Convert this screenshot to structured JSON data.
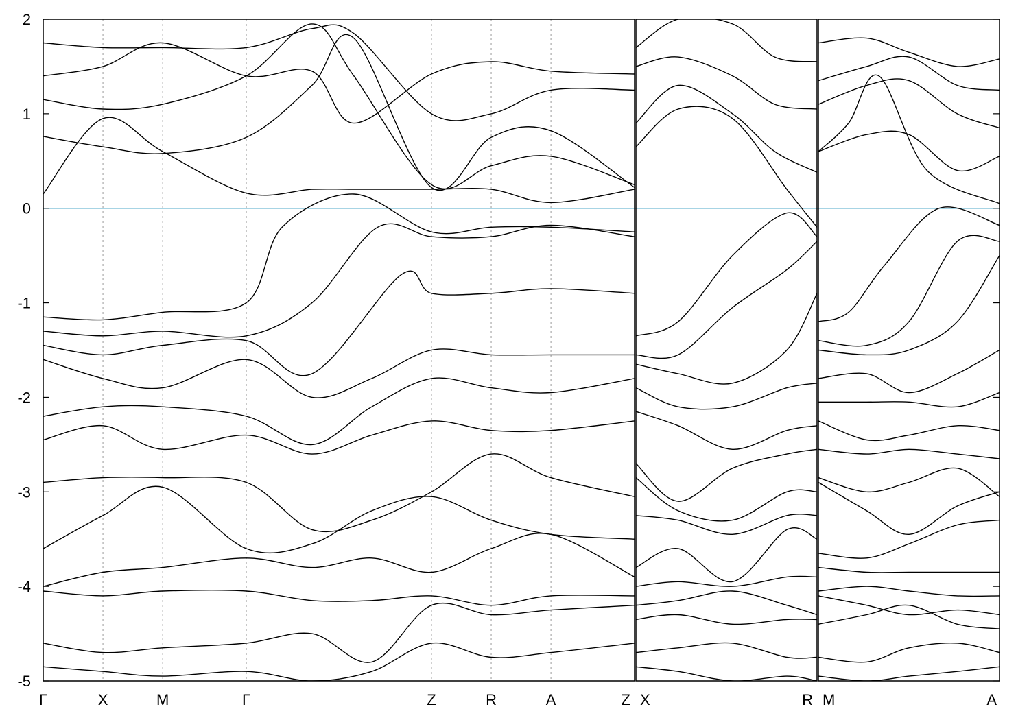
{
  "chart_data": {
    "type": "line",
    "title": "",
    "xlabel": "",
    "ylabel": "",
    "ylim": [
      -5,
      2
    ],
    "yticks": [
      2,
      1,
      0,
      -1,
      -2,
      -3,
      -4,
      -5
    ],
    "ytick_labels": [
      "2",
      "1",
      "0",
      "-1",
      "-2",
      "-3",
      "-4",
      "-5"
    ],
    "fermi_level": 0,
    "fermi_color": "#4fa8c8",
    "band_color": "#000000",
    "grid": "dashed vertical lines at high-symmetry points",
    "panels": [
      {
        "xlim": [
          0,
          9.0
        ],
        "kpoints": [
          {
            "x": 0.0,
            "label": "Γ"
          },
          {
            "x": 1.0,
            "label": "X"
          },
          {
            "x": 2.0,
            "label": "M"
          },
          {
            "x": 3.4,
            "label": "Γ"
          },
          {
            "x": 6.5,
            "label": "Z"
          },
          {
            "x": 7.5,
            "label": "R"
          },
          {
            "x": 8.5,
            "label": "A"
          },
          {
            "x": 9.9,
            "label": "Z"
          }
        ]
      },
      {
        "kpoints": [
          {
            "x": 0.0,
            "label": "X"
          },
          {
            "x": 3.0,
            "label": "R"
          }
        ]
      },
      {
        "kpoints": [
          {
            "x": 0.0,
            "label": "M"
          },
          {
            "x": 3.0,
            "label": "A"
          }
        ]
      }
    ],
    "series": [
      {
        "panel": 0,
        "x": [
          0,
          1,
          2,
          3.4,
          4.5,
          5.2,
          6.5,
          7.5,
          8.5,
          9.9
        ],
        "values": [
          0.15,
          0.95,
          0.6,
          0.16,
          0.2,
          0.2,
          0.2,
          0.2,
          0.06,
          0.2
        ]
      },
      {
        "panel": 0,
        "x": [
          0,
          1,
          2,
          3.4,
          4.5,
          5.2,
          6.5,
          7.5,
          8.5,
          9.9
        ],
        "values": [
          0.76,
          0.65,
          0.58,
          0.75,
          1.3,
          1.8,
          0.22,
          0.75,
          0.82,
          0.22
        ]
      },
      {
        "panel": 0,
        "x": [
          0,
          1,
          2,
          3.4,
          4.5,
          5.2,
          6.5,
          7.5,
          8.5,
          9.9
        ],
        "values": [
          1.15,
          1.05,
          1.1,
          1.4,
          1.95,
          1.4,
          0.25,
          0.45,
          0.55,
          0.25
        ]
      },
      {
        "panel": 0,
        "x": [
          0,
          1,
          2,
          3.4,
          4.5,
          5.2,
          6.5,
          7.5,
          8.5,
          9.9
        ],
        "values": [
          1.4,
          1.5,
          1.75,
          1.4,
          1.45,
          0.9,
          1.42,
          1.55,
          1.45,
          1.42
        ]
      },
      {
        "panel": 0,
        "x": [
          0,
          1,
          2,
          3.4,
          4.5,
          5.2,
          6.5,
          7.5,
          8.5,
          9.9
        ],
        "values": [
          1.75,
          1.7,
          1.7,
          1.7,
          1.9,
          1.85,
          1.0,
          1.0,
          1.25,
          1.25
        ]
      },
      {
        "panel": 0,
        "x": [
          0,
          1,
          2,
          3.4,
          4.0,
          5.2,
          6.5,
          7.5,
          8.5,
          9.9
        ],
        "values": [
          -1.15,
          -1.18,
          -1.1,
          -1.0,
          -0.2,
          0.15,
          -0.25,
          -0.2,
          -0.2,
          -0.25
        ]
      },
      {
        "panel": 0,
        "x": [
          0,
          1,
          2,
          3.4,
          4.5,
          5.6,
          6.5,
          7.5,
          8.5,
          9.9
        ],
        "values": [
          -1.3,
          -1.35,
          -1.3,
          -1.35,
          -1.0,
          -0.2,
          -0.3,
          -0.3,
          -0.18,
          -0.3
        ]
      },
      {
        "panel": 0,
        "x": [
          0,
          1,
          2,
          3.4,
          4.5,
          6.0,
          6.5,
          7.5,
          8.5,
          9.9
        ],
        "values": [
          -1.45,
          -1.55,
          -1.45,
          -1.4,
          -1.75,
          -0.7,
          -0.9,
          -0.9,
          -0.85,
          -0.9
        ]
      },
      {
        "panel": 0,
        "x": [
          0,
          1,
          2,
          3.4,
          4.5,
          5.5,
          6.5,
          7.5,
          8.5,
          9.9
        ],
        "values": [
          -1.6,
          -1.8,
          -1.9,
          -1.6,
          -2.0,
          -1.8,
          -1.5,
          -1.55,
          -1.55,
          -1.55
        ]
      },
      {
        "panel": 0,
        "x": [
          0,
          1,
          2,
          3.4,
          4.5,
          5.5,
          6.5,
          7.5,
          8.5,
          9.9
        ],
        "values": [
          -2.2,
          -2.1,
          -2.1,
          -2.2,
          -2.5,
          -2.1,
          -1.8,
          -1.9,
          -1.95,
          -1.8
        ]
      },
      {
        "panel": 0,
        "x": [
          0,
          1,
          2,
          3.4,
          4.5,
          5.5,
          6.5,
          7.5,
          8.5,
          9.9
        ],
        "values": [
          -2.45,
          -2.3,
          -2.55,
          -2.4,
          -2.6,
          -2.4,
          -2.25,
          -2.35,
          -2.35,
          -2.25
        ]
      },
      {
        "panel": 0,
        "x": [
          0,
          1,
          2,
          3.4,
          4.5,
          5.5,
          6.5,
          7.5,
          8.5,
          9.9
        ],
        "values": [
          -2.9,
          -2.85,
          -2.85,
          -2.9,
          -3.4,
          -3.3,
          -3.0,
          -2.6,
          -2.85,
          -3.05
        ]
      },
      {
        "panel": 0,
        "x": [
          0,
          1,
          2,
          3.4,
          4.5,
          5.5,
          6.5,
          7.5,
          8.5,
          9.9
        ],
        "values": [
          -3.6,
          -3.25,
          -2.95,
          -3.6,
          -3.55,
          -3.2,
          -3.05,
          -3.3,
          -3.45,
          -3.5
        ]
      },
      {
        "panel": 0,
        "x": [
          0,
          1,
          2,
          3.4,
          4.5,
          5.5,
          6.5,
          7.5,
          8.5,
          9.9
        ],
        "values": [
          -4.0,
          -3.85,
          -3.8,
          -3.7,
          -3.8,
          -3.7,
          -3.85,
          -3.6,
          -3.45,
          -3.9
        ]
      },
      {
        "panel": 0,
        "x": [
          0,
          1,
          2,
          3.4,
          4.5,
          5.5,
          6.5,
          7.5,
          8.5,
          9.9
        ],
        "values": [
          -4.05,
          -4.1,
          -4.05,
          -4.05,
          -4.15,
          -4.15,
          -4.1,
          -4.2,
          -4.1,
          -4.1
        ]
      },
      {
        "panel": 0,
        "x": [
          0,
          1,
          2,
          3.4,
          4.5,
          5.5,
          6.5,
          7.5,
          8.5,
          9.9
        ],
        "values": [
          -4.6,
          -4.7,
          -4.65,
          -4.6,
          -4.5,
          -4.8,
          -4.2,
          -4.3,
          -4.25,
          -4.2
        ]
      },
      {
        "panel": 0,
        "x": [
          0,
          1,
          2,
          3.4,
          4.5,
          5.5,
          6.5,
          7.5,
          8.5,
          9.9
        ],
        "values": [
          -4.85,
          -4.9,
          -4.95,
          -4.9,
          -5.0,
          -4.9,
          -4.6,
          -4.75,
          -4.7,
          -4.6
        ]
      },
      {
        "panel": 1,
        "x": [
          0,
          0.7,
          1.6,
          2.3,
          3.0
        ],
        "values": [
          1.7,
          2.0,
          1.95,
          1.6,
          1.55
        ]
      },
      {
        "panel": 1,
        "x": [
          0,
          0.7,
          1.6,
          2.3,
          3.0
        ],
        "values": [
          1.5,
          1.6,
          1.4,
          1.1,
          1.05
        ]
      },
      {
        "panel": 1,
        "x": [
          0,
          0.7,
          1.6,
          2.3,
          3.0
        ],
        "values": [
          0.9,
          1.3,
          1.0,
          0.6,
          0.38
        ]
      },
      {
        "panel": 1,
        "x": [
          0,
          0.7,
          1.6,
          2.5,
          3.0
        ],
        "values": [
          0.65,
          1.05,
          0.95,
          0.2,
          -0.2
        ]
      },
      {
        "panel": 1,
        "x": [
          0,
          0.7,
          1.6,
          2.5,
          3.0
        ],
        "values": [
          -1.35,
          -1.2,
          -0.5,
          -0.05,
          -0.3
        ]
      },
      {
        "panel": 1,
        "x": [
          0,
          0.7,
          1.6,
          2.5,
          3.0
        ],
        "values": [
          -1.55,
          -1.55,
          -1.05,
          -0.65,
          -0.35
        ]
      },
      {
        "panel": 1,
        "x": [
          0,
          0.7,
          1.6,
          2.5,
          3.0
        ],
        "values": [
          -1.65,
          -1.75,
          -1.85,
          -1.5,
          -0.9
        ]
      },
      {
        "panel": 1,
        "x": [
          0,
          0.7,
          1.6,
          2.5,
          3.0
        ],
        "values": [
          -1.9,
          -2.1,
          -2.1,
          -1.9,
          -1.85
        ]
      },
      {
        "panel": 1,
        "x": [
          0,
          0.7,
          1.6,
          2.5,
          3.0
        ],
        "values": [
          -2.15,
          -2.3,
          -2.55,
          -2.35,
          -2.3
        ]
      },
      {
        "panel": 1,
        "x": [
          0,
          0.7,
          1.6,
          2.5,
          3.0
        ],
        "values": [
          -2.7,
          -3.1,
          -2.75,
          -2.6,
          -2.55
        ]
      },
      {
        "panel": 1,
        "x": [
          0,
          0.7,
          1.6,
          2.5,
          3.0
        ],
        "values": [
          -2.85,
          -3.2,
          -3.3,
          -3.0,
          -3.0
        ]
      },
      {
        "panel": 1,
        "x": [
          0,
          0.7,
          1.6,
          2.5,
          3.0
        ],
        "values": [
          -3.25,
          -3.3,
          -3.45,
          -3.25,
          -3.25
        ]
      },
      {
        "panel": 1,
        "x": [
          0,
          0.7,
          1.6,
          2.5,
          3.0
        ],
        "values": [
          -3.8,
          -3.6,
          -3.95,
          -3.4,
          -3.5
        ]
      },
      {
        "panel": 1,
        "x": [
          0,
          0.7,
          1.6,
          2.5,
          3.0
        ],
        "values": [
          -4.0,
          -3.95,
          -4.0,
          -3.9,
          -3.9
        ]
      },
      {
        "panel": 1,
        "x": [
          0,
          0.7,
          1.6,
          2.5,
          3.0
        ],
        "values": [
          -4.2,
          -4.15,
          -4.05,
          -4.2,
          -4.3
        ]
      },
      {
        "panel": 1,
        "x": [
          0,
          0.7,
          1.6,
          2.5,
          3.0
        ],
        "values": [
          -4.35,
          -4.3,
          -4.4,
          -4.35,
          -4.35
        ]
      },
      {
        "panel": 1,
        "x": [
          0,
          0.7,
          1.6,
          2.5,
          3.0
        ],
        "values": [
          -4.7,
          -4.65,
          -4.6,
          -4.75,
          -4.75
        ]
      },
      {
        "panel": 1,
        "x": [
          0,
          0.7,
          1.6,
          2.5,
          3.0
        ],
        "values": [
          -4.85,
          -4.9,
          -5.0,
          -4.95,
          -5.0
        ]
      },
      {
        "panel": 2,
        "x": [
          0,
          0.8,
          1.5,
          2.3,
          3.0
        ],
        "values": [
          1.75,
          1.8,
          1.65,
          1.5,
          1.58
        ]
      },
      {
        "panel": 2,
        "x": [
          0,
          0.8,
          1.5,
          2.3,
          3.0
        ],
        "values": [
          1.35,
          1.5,
          1.6,
          1.3,
          1.25
        ]
      },
      {
        "panel": 2,
        "x": [
          0,
          0.8,
          1.5,
          2.3,
          3.0
        ],
        "values": [
          1.1,
          1.3,
          1.35,
          1.0,
          0.85
        ]
      },
      {
        "panel": 2,
        "x": [
          0,
          0.8,
          1.5,
          2.3,
          3.0
        ],
        "values": [
          0.6,
          0.78,
          0.78,
          0.4,
          0.55
        ]
      },
      {
        "panel": 2,
        "x": [
          0,
          0.5,
          1.0,
          1.8,
          3.0
        ],
        "values": [
          0.6,
          0.9,
          1.4,
          0.4,
          0.05
        ]
      },
      {
        "panel": 2,
        "x": [
          0,
          0.5,
          1.1,
          2.0,
          3.0
        ],
        "values": [
          -1.2,
          -1.1,
          -0.6,
          0.0,
          -0.18
        ]
      },
      {
        "panel": 2,
        "x": [
          0,
          0.8,
          1.5,
          2.3,
          3.0
        ],
        "values": [
          -1.4,
          -1.45,
          -1.2,
          -0.35,
          -0.35
        ]
      },
      {
        "panel": 2,
        "x": [
          0,
          0.8,
          1.5,
          2.3,
          3.0
        ],
        "values": [
          -1.5,
          -1.55,
          -1.5,
          -1.2,
          -0.5
        ]
      },
      {
        "panel": 2,
        "x": [
          0,
          0.8,
          1.5,
          2.3,
          3.0
        ],
        "values": [
          -1.8,
          -1.75,
          -1.95,
          -1.75,
          -1.5
        ]
      },
      {
        "panel": 2,
        "x": [
          0,
          0.8,
          1.5,
          2.3,
          3.0
        ],
        "values": [
          -2.05,
          -2.05,
          -2.05,
          -2.1,
          -1.95
        ]
      },
      {
        "panel": 2,
        "x": [
          0,
          0.8,
          1.5,
          2.3,
          3.0
        ],
        "values": [
          -2.25,
          -2.45,
          -2.4,
          -2.3,
          -2.35
        ]
      },
      {
        "panel": 2,
        "x": [
          0,
          0.8,
          1.5,
          2.3,
          3.0
        ],
        "values": [
          -2.55,
          -2.6,
          -2.55,
          -2.6,
          -2.65
        ]
      },
      {
        "panel": 2,
        "x": [
          0,
          0.8,
          1.5,
          2.3,
          3.0
        ],
        "values": [
          -2.85,
          -3.0,
          -2.9,
          -2.75,
          -3.05
        ]
      },
      {
        "panel": 2,
        "x": [
          0,
          0.8,
          1.5,
          2.3,
          3.0
        ],
        "values": [
          -2.9,
          -3.2,
          -3.45,
          -3.15,
          -3.0
        ]
      },
      {
        "panel": 2,
        "x": [
          0,
          0.8,
          1.5,
          2.3,
          3.0
        ],
        "values": [
          -3.65,
          -3.7,
          -3.55,
          -3.35,
          -3.3
        ]
      },
      {
        "panel": 2,
        "x": [
          0,
          0.8,
          1.5,
          2.3,
          3.0
        ],
        "values": [
          -3.8,
          -3.85,
          -3.85,
          -3.85,
          -3.85
        ]
      },
      {
        "panel": 2,
        "x": [
          0,
          0.8,
          1.5,
          2.3,
          3.0
        ],
        "values": [
          -4.05,
          -4.0,
          -4.05,
          -4.1,
          -4.1
        ]
      },
      {
        "panel": 2,
        "x": [
          0,
          0.8,
          1.5,
          2.3,
          3.0
        ],
        "values": [
          -4.1,
          -4.2,
          -4.3,
          -4.25,
          -4.3
        ]
      },
      {
        "panel": 2,
        "x": [
          0,
          0.8,
          1.5,
          2.3,
          3.0
        ],
        "values": [
          -4.4,
          -4.3,
          -4.2,
          -4.4,
          -4.45
        ]
      },
      {
        "panel": 2,
        "x": [
          0,
          0.8,
          1.5,
          2.3,
          3.0
        ],
        "values": [
          -4.75,
          -4.8,
          -4.65,
          -4.6,
          -4.7
        ]
      },
      {
        "panel": 2,
        "x": [
          0,
          0.8,
          1.5,
          2.3,
          3.0
        ],
        "values": [
          -4.95,
          -5.0,
          -4.95,
          -4.9,
          -4.85
        ]
      }
    ]
  }
}
